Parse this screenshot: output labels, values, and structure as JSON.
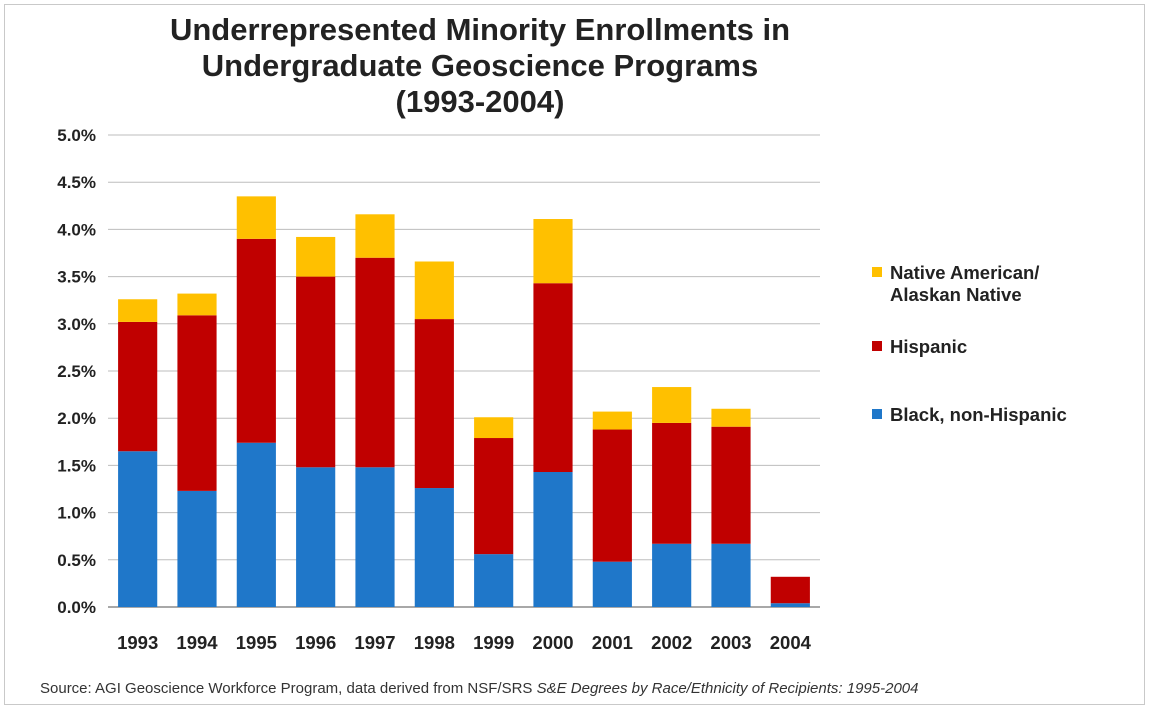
{
  "chart_data": {
    "type": "bar",
    "stacked": true,
    "title_lines": [
      "Underrepresented Minority Enrollments in",
      "Undergraduate Geoscience Programs",
      "(1993-2004)"
    ],
    "xlabel": "",
    "ylabel": "",
    "ylim": [
      0,
      5.0
    ],
    "y_ticks": [
      "0.0%",
      "0.5%",
      "1.0%",
      "1.5%",
      "2.0%",
      "2.5%",
      "3.0%",
      "3.5%",
      "4.0%",
      "4.5%",
      "5.0%"
    ],
    "y_tick_values": [
      0,
      0.5,
      1.0,
      1.5,
      2.0,
      2.5,
      3.0,
      3.5,
      4.0,
      4.5,
      5.0
    ],
    "grid": true,
    "legend_position": "right",
    "categories": [
      "1993",
      "1994",
      "1995",
      "1996",
      "1997",
      "1998",
      "1999",
      "2000",
      "2001",
      "2002",
      "2003",
      "2004"
    ],
    "series": [
      {
        "name": "Black, non-Hispanic",
        "color": "#1f77c9",
        "values": [
          1.65,
          1.23,
          1.74,
          1.48,
          1.48,
          1.26,
          0.56,
          1.43,
          0.48,
          0.67,
          0.67,
          0.04
        ]
      },
      {
        "name": "Hispanic",
        "color": "#c00000",
        "values": [
          1.37,
          1.86,
          2.16,
          2.02,
          2.22,
          1.79,
          1.23,
          2.0,
          1.4,
          1.28,
          1.24,
          0.28
        ]
      },
      {
        "name": "Native American/\nAlaskan Native",
        "color": "#ffc000",
        "values": [
          0.24,
          0.23,
          0.45,
          0.42,
          0.46,
          0.61,
          0.22,
          0.68,
          0.19,
          0.38,
          0.19,
          0.0
        ]
      }
    ]
  },
  "legend": {
    "items": [
      {
        "label": "Native American/\nAlaskan Native",
        "color": "#ffc000"
      },
      {
        "label": "Hispanic",
        "color": "#c00000"
      },
      {
        "label": "Black, non-Hispanic",
        "color": "#1f77c9"
      }
    ]
  },
  "source": {
    "prefix": "Source: AGI Geoscience Workforce Program, data derived from NSF/SRS ",
    "italic": "S&E Degrees  by Race/Ethnicity of Recipients: 1995-2004"
  }
}
